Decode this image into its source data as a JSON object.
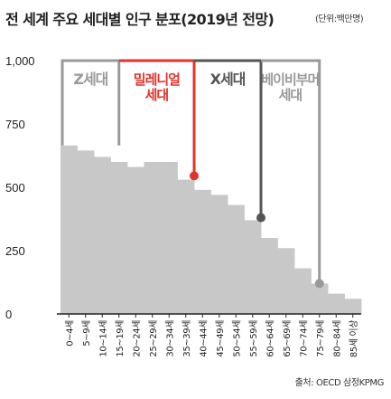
{
  "title": "전 세계 주요 세대별 인구 분포(2019년 전망)",
  "unit": "(단위:백만명)",
  "source": "출처: OECD 삼정KPMG",
  "colors": {
    "area": "#c8c8c8",
    "gen_z": "#999999",
    "millennial": "#e0342b",
    "gen_x": "#555555",
    "boomer": "#999999",
    "axis": "#222222"
  },
  "chart_data": {
    "type": "area",
    "title": "전 세계 주요 세대별 인구 분포(2019년 전망)",
    "xlabel": "",
    "ylabel": "",
    "ylim": [
      0,
      1000
    ],
    "yticks": [
      "0",
      "250",
      "500",
      "750",
      "1,000"
    ],
    "categories": [
      "0~4세",
      "5~9세",
      "10~14세",
      "15~19세",
      "20~24세",
      "25~29세",
      "30~34세",
      "35~39세",
      "40~44세",
      "45~49세",
      "50~54세",
      "55~59세",
      "60~64세",
      "65~69세",
      "70~74세",
      "75~79세",
      "80~84세",
      "85세 이상"
    ],
    "values": [
      665,
      645,
      620,
      600,
      580,
      600,
      600,
      530,
      490,
      470,
      430,
      370,
      300,
      260,
      180,
      120,
      80,
      60
    ],
    "generations": [
      {
        "label_lines": [
          "Z세대"
        ],
        "color_key": "gen_z",
        "line_value": 665
      },
      {
        "label_lines": [
          "밀레니얼",
          "세대"
        ],
        "color_key": "millennial",
        "line_value": 545
      },
      {
        "label_lines": [
          "X세대"
        ],
        "color_key": "gen_x",
        "line_value": 380
      },
      {
        "label_lines": [
          "베이비부머",
          "세대"
        ],
        "color_key": "boomer",
        "line_value": 120
      }
    ]
  }
}
